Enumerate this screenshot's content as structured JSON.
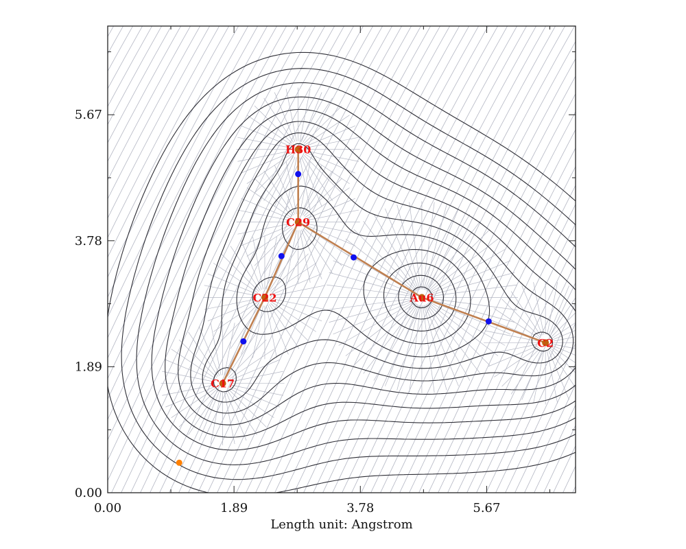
{
  "chart_data": {
    "type": "contour",
    "xlabel": "Length unit: Angstrom",
    "ylabel": "",
    "xlim": [
      0,
      7.0
    ],
    "ylim": [
      0,
      7.0
    ],
    "x_ticks": [
      "0.00",
      "1.89",
      "3.78",
      "5.67"
    ],
    "y_ticks": [
      "0.00",
      "1.89",
      "3.78",
      "5.67"
    ],
    "atoms": [
      {
        "label": "H30",
        "x": 2.85,
        "y": 5.15
      },
      {
        "label": "C29",
        "x": 2.85,
        "y": 4.06
      },
      {
        "label": "C22",
        "x": 2.35,
        "y": 2.93
      },
      {
        "label": "C17",
        "x": 1.72,
        "y": 1.64
      },
      {
        "label": "Au6",
        "x": 4.7,
        "y": 2.93
      },
      {
        "label": "C2",
        "x": 6.55,
        "y": 2.25
      }
    ],
    "bond_paths": [
      [
        "H30",
        "C29"
      ],
      [
        "C29",
        "C22"
      ],
      [
        "C22",
        "C17"
      ],
      [
        "C29",
        "Au6"
      ],
      [
        "Au6",
        "C2"
      ]
    ],
    "bond_critical_points": [
      {
        "x": 2.85,
        "y": 4.78
      },
      {
        "x": 2.6,
        "y": 3.55
      },
      {
        "x": 2.03,
        "y": 2.27
      },
      {
        "x": 3.68,
        "y": 3.53
      },
      {
        "x": 5.7,
        "y": 2.57
      }
    ],
    "ring_critical_points": [
      {
        "x": 1.07,
        "y": 0.45
      }
    ],
    "colors": {
      "contour": "#2c2c34",
      "gradient_lines": "#b3b6c3",
      "bond_path": "#c08050",
      "bcp": "#1010ee",
      "rcp": "#ff8000",
      "atom_marker": "#c06010",
      "atom_label": "#ee1111"
    }
  }
}
